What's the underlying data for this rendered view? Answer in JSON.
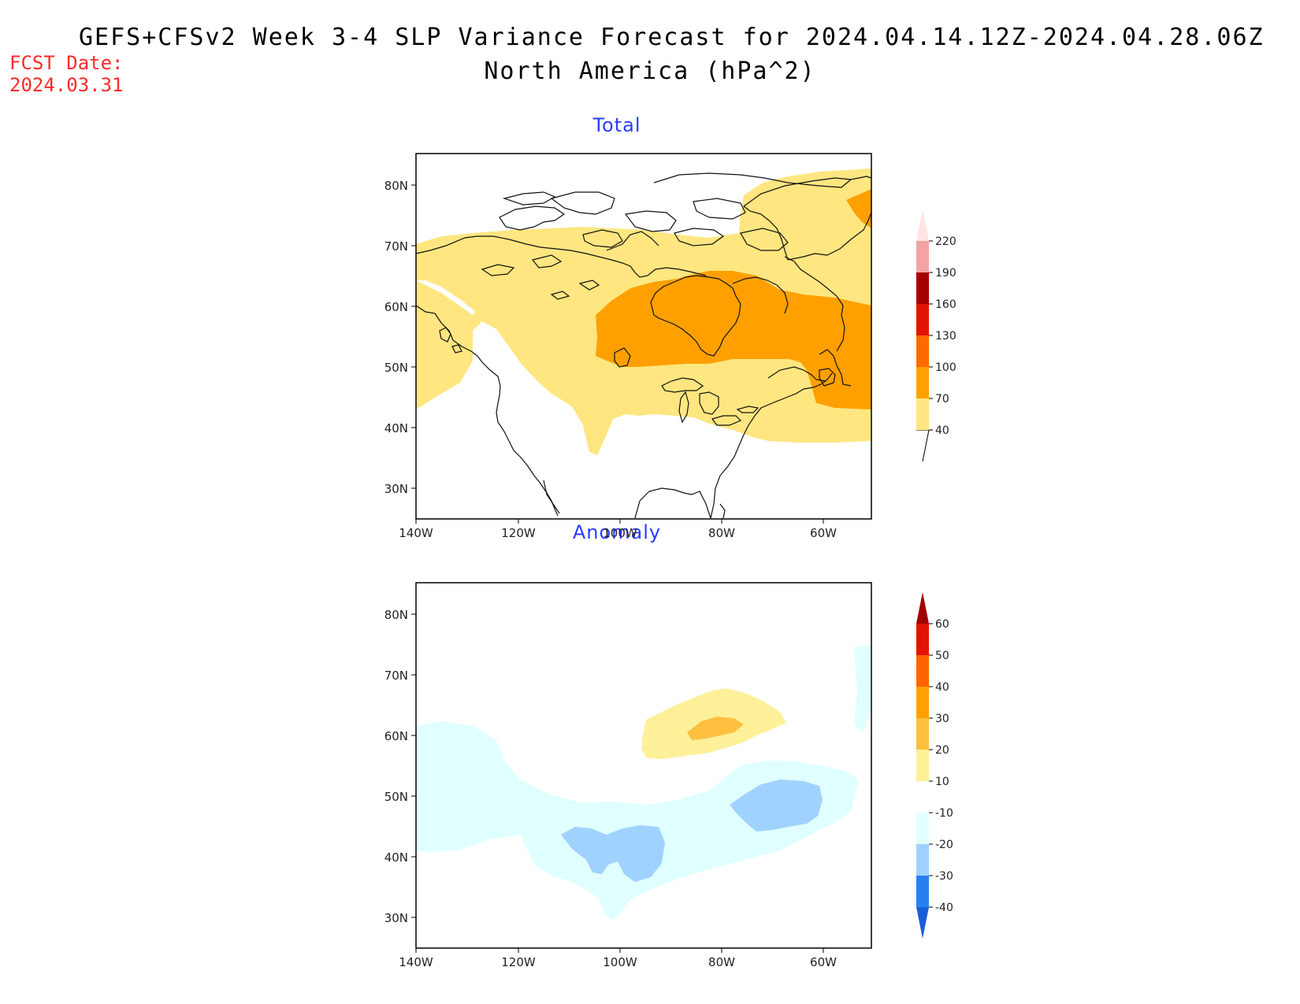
{
  "header": {
    "title": "GEFS+CFSv2 Week 3-4 SLP Variance Forecast for 2024.04.14.12Z-2024.04.28.06Z",
    "subtitle": "North America (hPa^2)",
    "fcst_label": "FCST Date:",
    "fcst_date": "2024.03.31"
  },
  "axes": {
    "lat_ticks": [
      "80N",
      "70N",
      "60N",
      "50N",
      "40N",
      "30N"
    ],
    "lon_ticks": [
      "140W",
      "120W",
      "100W",
      "80W",
      "60W"
    ]
  },
  "panels": [
    {
      "title": "Total",
      "colorbar": {
        "labels": [
          "40",
          "70",
          "100",
          "130",
          "160",
          "190",
          "220"
        ],
        "colors": [
          "#ffe680",
          "#ffa000",
          "#ff6a00",
          "#e21400",
          "#a50000",
          "#f4a3a3",
          "#ffe4e4"
        ]
      }
    },
    {
      "title": "Anomaly",
      "colorbar": {
        "labels": [
          "60",
          "50",
          "40",
          "30",
          "20",
          "10",
          "-10",
          "-20",
          "-30",
          "-40"
        ],
        "colors": [
          "#a00000",
          "#e11400",
          "#ff6400",
          "#ffa000",
          "#ffc040",
          "#fff09a",
          "#ffffff",
          "#e0ffff",
          "#a0d2ff",
          "#2680f0",
          "#1a5fd8"
        ]
      }
    }
  ]
}
